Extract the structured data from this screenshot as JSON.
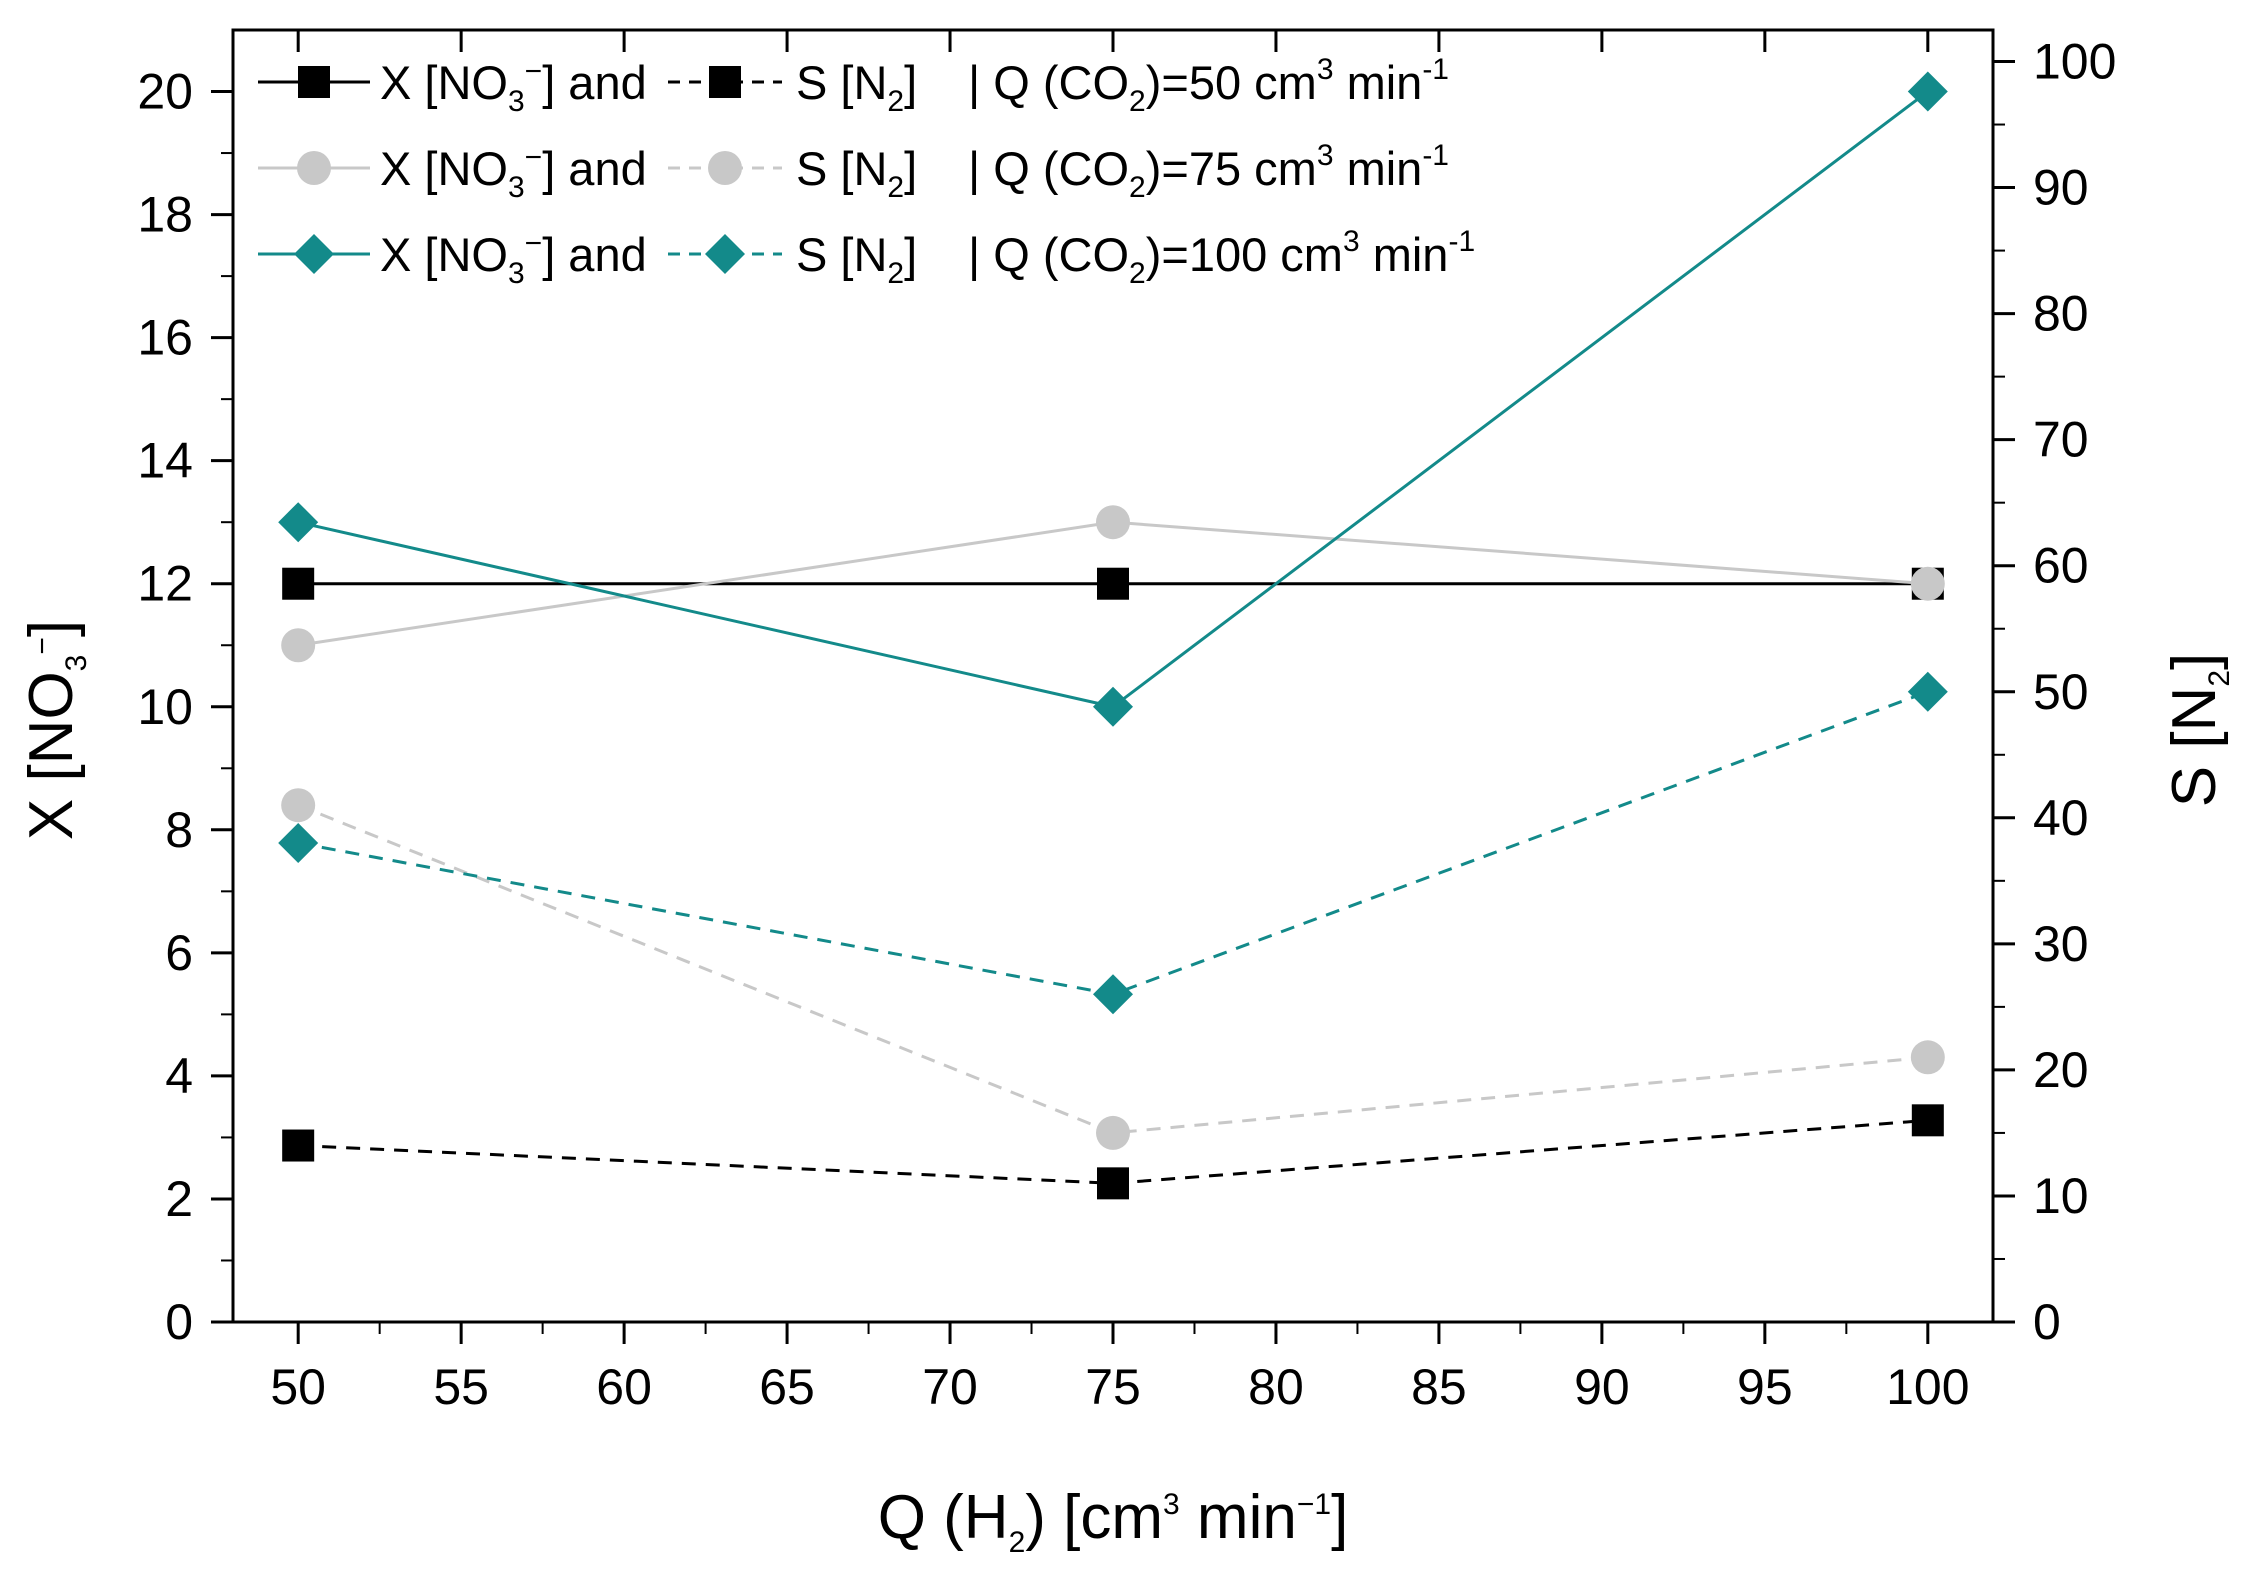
{
  "chart_data": {
    "type": "line",
    "title": "",
    "xlabel": "Q (H2) [cm3 min−1]",
    "ylabel_left": "X [NO3−]",
    "ylabel_right": "S [N2]",
    "x": [
      50,
      75,
      100
    ],
    "xlim": [
      48,
      102
    ],
    "ylim_left": [
      0,
      21
    ],
    "ylim_right": [
      0,
      102.5
    ],
    "x_ticks": [
      50,
      55,
      60,
      65,
      70,
      75,
      80,
      85,
      90,
      95,
      100
    ],
    "y_left_ticks": [
      0,
      2,
      4,
      6,
      8,
      10,
      12,
      14,
      16,
      18,
      20
    ],
    "y_right_ticks": [
      0,
      10,
      20,
      30,
      40,
      50,
      60,
      70,
      80,
      90,
      100
    ],
    "series": [
      {
        "name": "X [NO3−] | Q (CO2)=50",
        "axis": "left",
        "style": "solid",
        "marker": "square",
        "color": "#000000",
        "values": [
          12,
          12,
          12
        ]
      },
      {
        "name": "S [N2] | Q (CO2)=50",
        "axis": "right",
        "style": "dashed",
        "marker": "square",
        "color": "#000000",
        "values": [
          14,
          11,
          16
        ]
      },
      {
        "name": "X [NO3−] | Q (CO2)=75",
        "axis": "left",
        "style": "solid",
        "marker": "circle",
        "color": "#c8c8c8",
        "values": [
          11,
          13,
          12
        ]
      },
      {
        "name": "S [N2] | Q (CO2)=75",
        "axis": "right",
        "style": "dashed",
        "marker": "circle",
        "color": "#c8c8c8",
        "values": [
          41,
          15,
          21
        ]
      },
      {
        "name": "X [NO3−] | Q (CO2)=100",
        "axis": "left",
        "style": "solid",
        "marker": "diamond",
        "color": "#138a8a",
        "values": [
          13,
          10,
          20
        ]
      },
      {
        "name": "S [N2] | Q (CO2)=100",
        "axis": "right",
        "style": "dashed",
        "marker": "diamond",
        "color": "#138a8a",
        "values": [
          38,
          26,
          50
        ]
      }
    ],
    "legend": {
      "placement": "top-left",
      "text_x": "X [NO",
      "text_x_sub": "3",
      "text_x_sup": "−",
      "text_x_end": "] and",
      "text_s": "S [N",
      "text_s_sub": "2",
      "text_s_end": "]",
      "text_q": "| Q (CO",
      "text_q_sub": "2",
      "text_q_eq": ")=",
      "flows": [
        "50",
        "75",
        "100"
      ],
      "unit_cm": "cm",
      "unit_cm_sup": "3",
      "unit_min": "min",
      "unit_min_sup": "-1"
    },
    "labels": {
      "x_q": "Q (H",
      "x_sub": "2",
      "x_mid": ") [cm",
      "x_sup3": "3",
      "x_min": " min",
      "x_sup": "−1",
      "x_end": "]",
      "yl_a": "X  [NO",
      "yl_sub": "3",
      "yl_sup": "−",
      "yl_end": "]",
      "yr_a": "S  [N",
      "yr_sub": "2",
      "yr_end": "]"
    }
  }
}
